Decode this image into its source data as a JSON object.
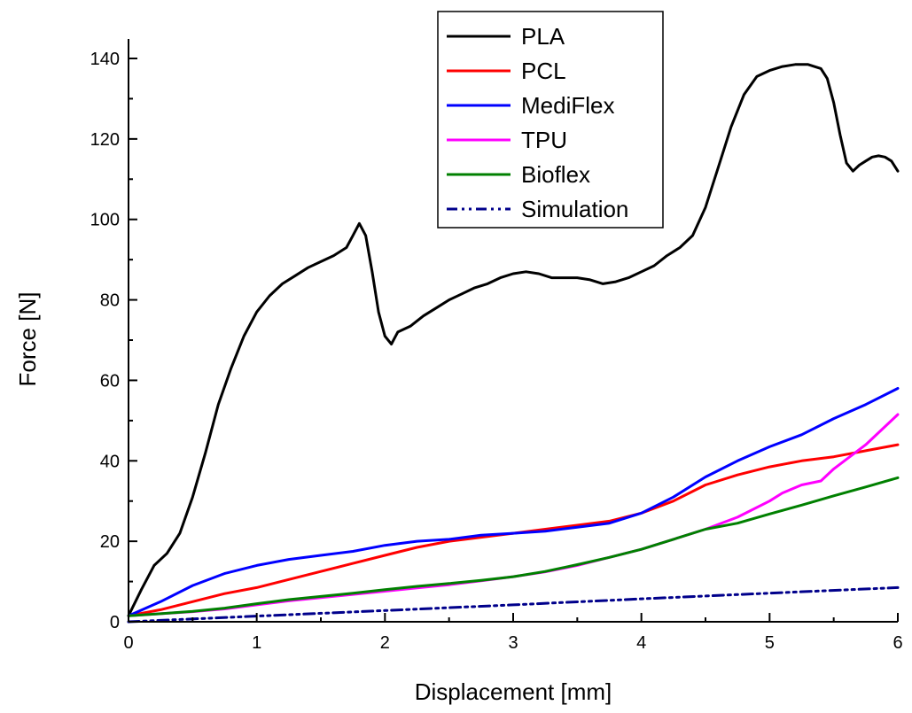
{
  "chart_data": {
    "type": "line",
    "title": "",
    "xlabel": "Displacement [mm]",
    "ylabel": "Force [N]",
    "xlim": [
      0,
      6
    ],
    "ylim": [
      0,
      145
    ],
    "xticks": [
      0,
      1,
      2,
      3,
      4,
      5,
      6
    ],
    "yticks": [
      0,
      20,
      40,
      60,
      80,
      100,
      120,
      140
    ],
    "grid": false,
    "legend_position": "top-center",
    "series": [
      {
        "name": "PLA",
        "color": "#000000",
        "dash": "solid",
        "x": [
          0,
          0.1,
          0.2,
          0.3,
          0.4,
          0.5,
          0.6,
          0.7,
          0.8,
          0.9,
          1.0,
          1.1,
          1.2,
          1.3,
          1.4,
          1.5,
          1.6,
          1.7,
          1.75,
          1.8,
          1.85,
          1.9,
          1.95,
          2.0,
          2.05,
          2.1,
          2.2,
          2.3,
          2.4,
          2.5,
          2.6,
          2.7,
          2.8,
          2.9,
          3.0,
          3.1,
          3.2,
          3.3,
          3.4,
          3.5,
          3.6,
          3.7,
          3.8,
          3.9,
          4.0,
          4.1,
          4.2,
          4.3,
          4.4,
          4.5,
          4.6,
          4.7,
          4.8,
          4.9,
          5.0,
          5.1,
          5.2,
          5.3,
          5.4,
          5.45,
          5.5,
          5.55,
          5.6,
          5.65,
          5.7,
          5.75,
          5.8,
          5.85,
          5.9,
          5.95,
          6.0
        ],
        "y": [
          1.5,
          8,
          14,
          17,
          22,
          31,
          42,
          54,
          63,
          71,
          77,
          81,
          84,
          86,
          88,
          89.5,
          91,
          93,
          96,
          99,
          96,
          87,
          77,
          71,
          69,
          72,
          73.5,
          76,
          78,
          80,
          81.5,
          83,
          84,
          85.5,
          86.5,
          87,
          86.5,
          85.5,
          85.5,
          85.5,
          85,
          84,
          84.5,
          85.5,
          87,
          88.5,
          91,
          93,
          96,
          103,
          113,
          123,
          131,
          135.5,
          137,
          138,
          138.5,
          138.5,
          137.5,
          135,
          129,
          121,
          114,
          112,
          113.5,
          114.5,
          115.5,
          115.8,
          115.5,
          114.5,
          112
        ]
      },
      {
        "name": "PCL",
        "color": "#ff0000",
        "dash": "solid",
        "x": [
          0,
          0.25,
          0.5,
          0.75,
          1.0,
          1.25,
          1.5,
          1.75,
          2.0,
          2.25,
          2.5,
          2.75,
          3.0,
          3.25,
          3.5,
          3.75,
          4.0,
          4.25,
          4.5,
          4.75,
          5.0,
          5.25,
          5.5,
          5.75,
          6.0
        ],
        "y": [
          1.5,
          3,
          5,
          7,
          8.5,
          10.5,
          12.5,
          14.5,
          16.5,
          18.5,
          20,
          21,
          22,
          23,
          24,
          25,
          27,
          30,
          34,
          36.5,
          38.5,
          40,
          41,
          42.5,
          44
        ]
      },
      {
        "name": "MediFlex",
        "color": "#0000ff",
        "dash": "solid",
        "x": [
          0,
          0.25,
          0.5,
          0.75,
          1.0,
          1.25,
          1.5,
          1.75,
          2.0,
          2.25,
          2.5,
          2.75,
          3.0,
          3.25,
          3.5,
          3.75,
          4.0,
          4.25,
          4.5,
          4.75,
          5.0,
          5.25,
          5.5,
          5.75,
          6.0
        ],
        "y": [
          1.5,
          5,
          9,
          12,
          14,
          15.5,
          16.5,
          17.5,
          19,
          20,
          20.5,
          21.5,
          22,
          22.5,
          23.5,
          24.5,
          27,
          31,
          36,
          40,
          43.5,
          46.5,
          50.5,
          54,
          58
        ]
      },
      {
        "name": "TPU",
        "color": "#ff00ff",
        "dash": "solid",
        "x": [
          0,
          0.25,
          0.5,
          0.75,
          1.0,
          1.25,
          1.5,
          1.75,
          2.0,
          2.25,
          2.5,
          2.75,
          3.0,
          3.25,
          3.5,
          3.75,
          4.0,
          4.25,
          4.5,
          4.75,
          5.0,
          5.1,
          5.25,
          5.4,
          5.5,
          5.75,
          6.0
        ],
        "y": [
          1.5,
          2,
          2.5,
          3.2,
          4.2,
          5.2,
          6,
          6.8,
          7.6,
          8.4,
          9.2,
          10.2,
          11.2,
          12.4,
          14,
          16,
          18,
          20.5,
          23,
          26,
          30,
          32,
          34,
          35,
          38,
          44,
          51.5
        ]
      },
      {
        "name": "Bioflex",
        "color": "#008000",
        "dash": "solid",
        "x": [
          0,
          0.25,
          0.5,
          0.75,
          1.0,
          1.25,
          1.5,
          1.75,
          2.0,
          2.25,
          2.5,
          2.75,
          3.0,
          3.25,
          3.5,
          3.75,
          4.0,
          4.25,
          4.5,
          4.75,
          5.0,
          5.25,
          5.5,
          5.75,
          6.0
        ],
        "y": [
          1.5,
          2,
          2.6,
          3.4,
          4.5,
          5.5,
          6.3,
          7.1,
          8,
          8.8,
          9.5,
          10.3,
          11.2,
          12.5,
          14.2,
          16,
          18,
          20.5,
          23,
          24.5,
          26.8,
          29,
          31.3,
          33.5,
          35.8
        ]
      },
      {
        "name": "Simulation",
        "color": "#00008b",
        "dash": "dashdotdot",
        "x": [
          0,
          1,
          2,
          3,
          4,
          5,
          6
        ],
        "y": [
          0,
          1.4,
          2.8,
          4.2,
          5.7,
          7.1,
          8.5
        ]
      }
    ]
  }
}
